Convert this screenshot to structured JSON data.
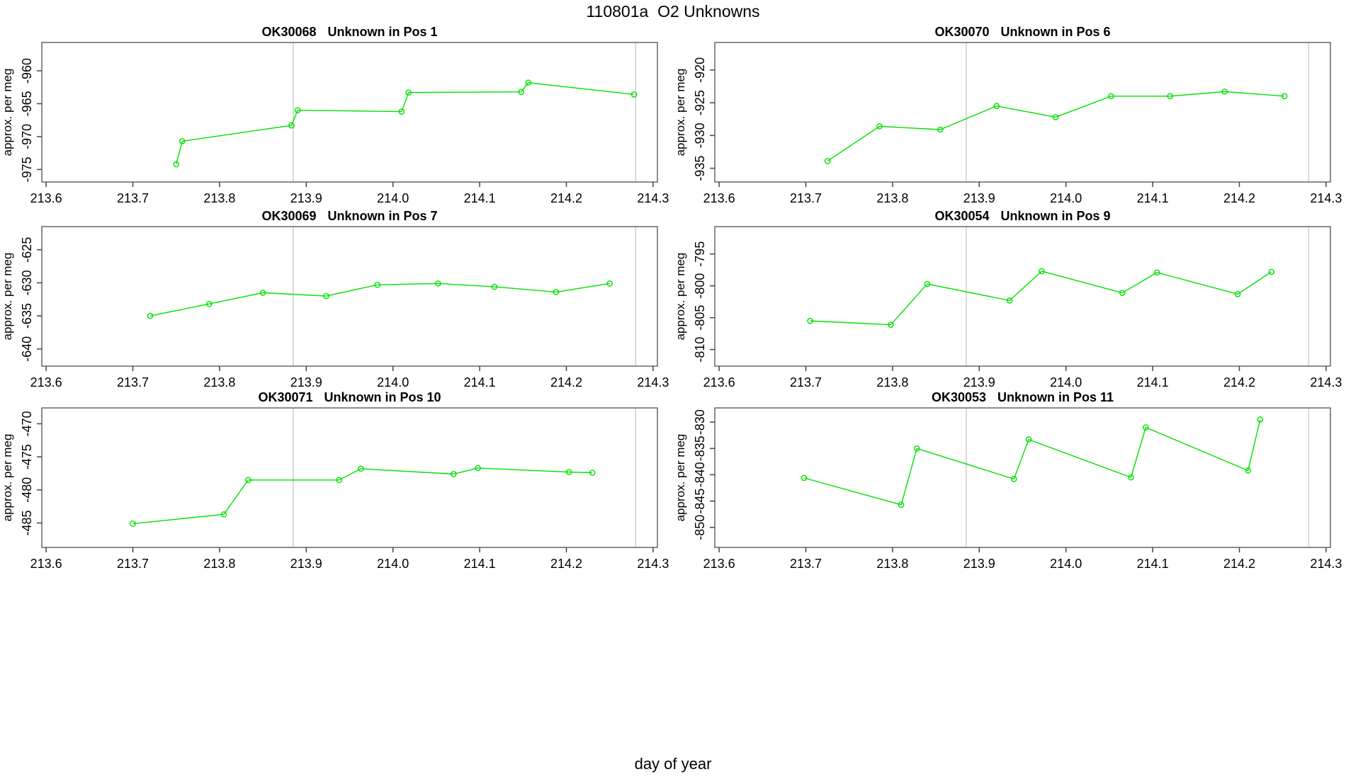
{
  "header": {
    "title": "110801a  O2 Unknowns"
  },
  "footer": {
    "xlabel": "day of year"
  },
  "colors": {
    "series": "#00E000",
    "reference_line": "#C9C9C9",
    "axis": "#666666",
    "text": "#000000"
  },
  "axis": {
    "ylabel": "approx. per meg",
    "xlim": [
      213.595,
      214.305
    ],
    "xticks": [
      213.6,
      213.7,
      213.8,
      213.9,
      214.0,
      214.1,
      214.2,
      214.3
    ],
    "xtick_labels": [
      "213.6",
      "213.7",
      "213.8",
      "213.9",
      "214.0",
      "214.1",
      "214.2",
      "214.3"
    ],
    "reference_lines_x": [
      213.885,
      214.28
    ]
  },
  "chart_data": [
    {
      "type": "line",
      "id": "OK30068",
      "pos_label": "Unknown in Pos 1",
      "ylabel": "approx. per meg",
      "ylim": [
        -976.9,
        -955.7
      ],
      "yticks": [
        -975,
        -970,
        -965,
        -960
      ],
      "ytick_labels": [
        "-975",
        "-970",
        "-965",
        "-960"
      ],
      "x": [
        213.75,
        213.757,
        213.883,
        213.89,
        214.01,
        214.018,
        214.148,
        214.156,
        214.278
      ],
      "y": [
        -974.2,
        -970.7,
        -968.3,
        -966.0,
        -966.2,
        -963.3,
        -963.2,
        -961.8,
        -963.6
      ]
    },
    {
      "type": "line",
      "id": "OK30070",
      "pos_label": "Unknown in Pos 6",
      "ylabel": "approx. per meg",
      "ylim": [
        -937.1,
        -915.8
      ],
      "yticks": [
        -935,
        -930,
        -925,
        -920
      ],
      "ytick_labels": [
        "-935",
        "-930",
        "-925",
        "-920"
      ],
      "x": [
        213.725,
        213.785,
        213.855,
        213.92,
        213.988,
        214.052,
        214.12,
        214.183,
        214.252
      ],
      "y": [
        -933.9,
        -928.6,
        -929.1,
        -925.5,
        -927.2,
        -924.0,
        -924.0,
        -923.3,
        -924.0
      ]
    },
    {
      "type": "line",
      "id": "OK30069",
      "pos_label": "Unknown in Pos 7",
      "ylabel": "approx. per meg",
      "ylim": [
        -642.6,
        -621.5
      ],
      "yticks": [
        -640,
        -635,
        -630,
        -625
      ],
      "ytick_labels": [
        "-640",
        "-635",
        "-630",
        "-625"
      ],
      "x": [
        213.72,
        213.788,
        213.85,
        213.923,
        213.982,
        214.052,
        214.117,
        214.188,
        214.25
      ],
      "y": [
        -635.0,
        -633.2,
        -631.5,
        -632.0,
        -630.3,
        -630.1,
        -630.6,
        -631.4,
        -630.1
      ]
    },
    {
      "type": "line",
      "id": "OK30054",
      "pos_label": "Unknown in Pos 9",
      "ylabel": "approx. per meg",
      "ylim": [
        -812.6,
        -790.7
      ],
      "yticks": [
        -810,
        -805,
        -800,
        -795
      ],
      "ytick_labels": [
        "-810",
        "-805",
        "-800",
        "-795"
      ],
      "x": [
        213.705,
        213.798,
        213.84,
        213.935,
        213.972,
        214.065,
        214.105,
        214.198,
        214.237
      ],
      "y": [
        -805.5,
        -806.1,
        -799.7,
        -802.3,
        -797.7,
        -801.1,
        -797.9,
        -801.3,
        -797.8
      ]
    },
    {
      "type": "line",
      "id": "OK30071",
      "pos_label": "Unknown in Pos 10",
      "ylabel": "approx. per meg",
      "ylim": [
        -488.7,
        -467.6
      ],
      "yticks": [
        -485,
        -480,
        -475,
        -470
      ],
      "ytick_labels": [
        "-485",
        "-480",
        "-475",
        "-470"
      ],
      "x": [
        213.7,
        213.805,
        213.833,
        213.938,
        213.963,
        214.07,
        214.098,
        214.203,
        214.23
      ],
      "y": [
        -485.1,
        -483.7,
        -478.5,
        -478.5,
        -476.8,
        -477.6,
        -476.7,
        -477.3,
        -477.4
      ]
    },
    {
      "type": "line",
      "id": "OK30053",
      "pos_label": "Unknown in Pos 11",
      "ylabel": "approx. per meg",
      "ylim": [
        -853.8,
        -827.3
      ],
      "yticks": [
        -850,
        -845,
        -840,
        -835,
        -830
      ],
      "ytick_labels": [
        "-850",
        "-845",
        "-840",
        "-835",
        "-830"
      ],
      "x": [
        213.698,
        213.81,
        213.828,
        213.94,
        213.957,
        214.075,
        214.092,
        214.21,
        214.224
      ],
      "y": [
        -840.6,
        -845.7,
        -835.0,
        -840.8,
        -833.3,
        -840.5,
        -831.0,
        -839.2,
        -829.5
      ]
    }
  ]
}
